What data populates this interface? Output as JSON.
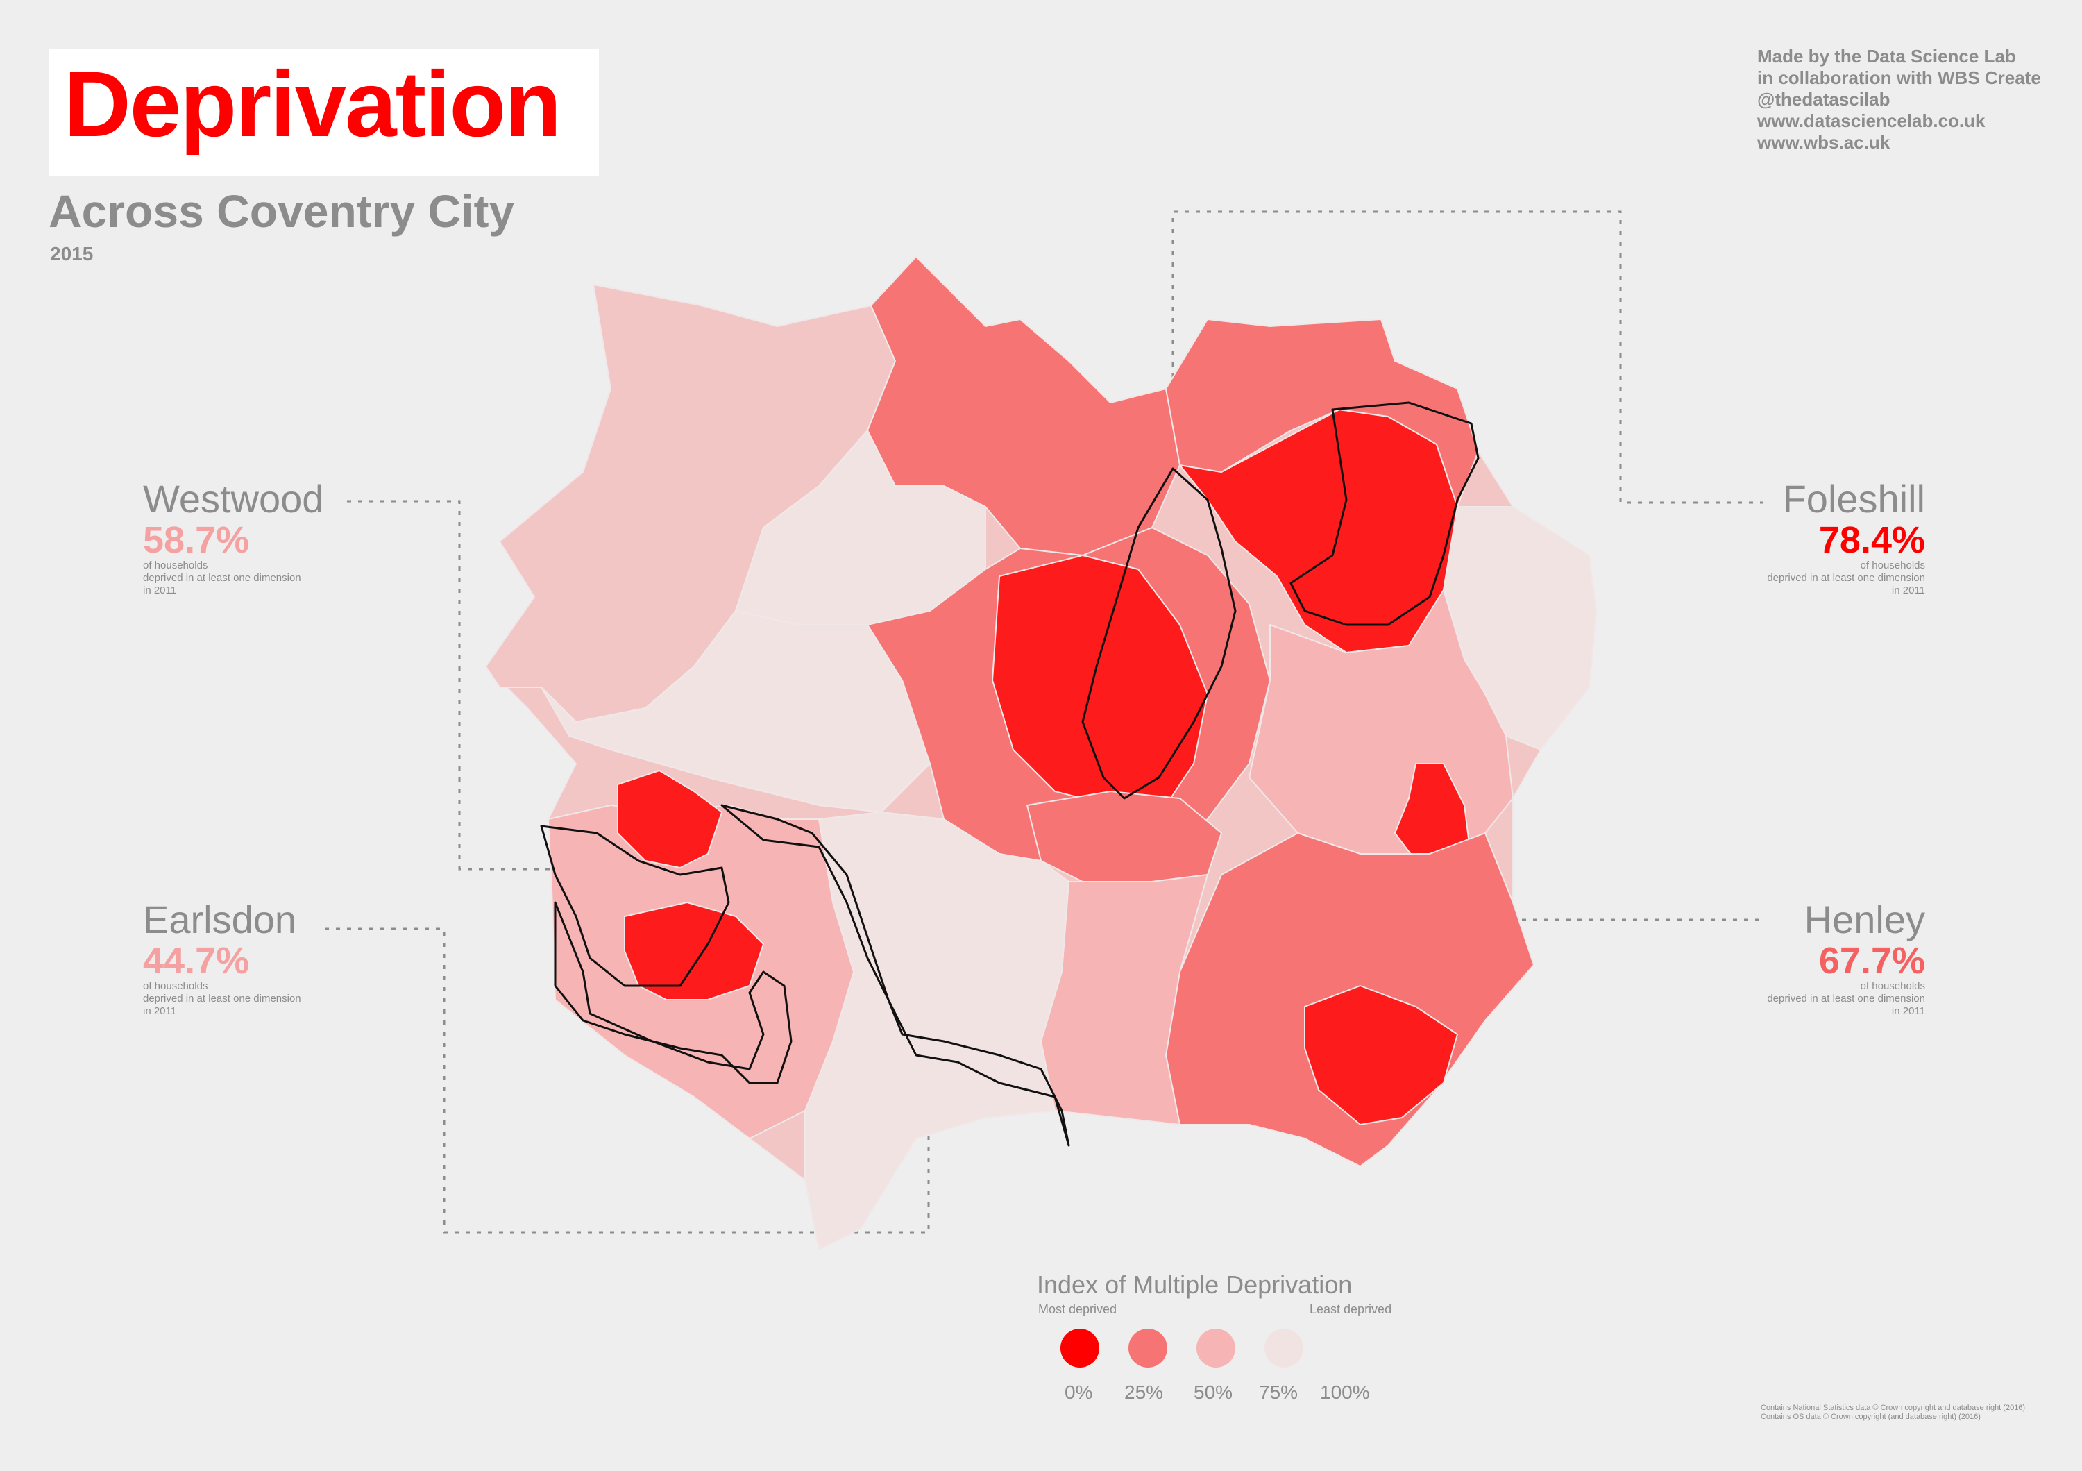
{
  "title": "Deprivation",
  "subtitle": "Across Coventry City",
  "year": "2015",
  "credits": [
    "Made by the Data Science Lab",
    "in collaboration with WBS Create",
    "@thedatascilab",
    "www.datasciencelab.co.uk",
    "www.wbs.ac.uk"
  ],
  "callouts": {
    "westwood": {
      "name": "Westwood",
      "percent": "58.7%",
      "note": [
        "of households",
        "deprived in at least one dimension",
        "in 2011"
      ],
      "color": "#f6a1a1"
    },
    "earlsdon": {
      "name": "Earlsdon",
      "percent": "44.7%",
      "note": [
        "of households",
        "deprived in at least one dimension",
        "in 2011"
      ],
      "color": "#f6a1a1"
    },
    "foleshill": {
      "name": "Foleshill",
      "percent": "78.4%",
      "note": [
        "of households",
        "deprived in at least one dimension",
        "in 2011"
      ],
      "color": "#fe0000"
    },
    "henley": {
      "name": "Henley",
      "percent": "67.7%",
      "note": [
        "of households",
        "deprived in at least one dimension",
        "in 2011"
      ],
      "color": "#f56060"
    }
  },
  "legend": {
    "title": "Index of Multiple Deprivation",
    "most_label": "Most deprived",
    "least_label": "Least deprived",
    "colors": [
      "#fe0000",
      "#f77474",
      "#f6b4b4",
      "#f2e3e3"
    ],
    "ticks": [
      "0%",
      "25%",
      "50%",
      "75%",
      "100%"
    ]
  },
  "footer": [
    "Contains National Statistics data © Crown copyright and database right (2016)",
    "Contains OS data © Crown copyright (and database right) (2016)"
  ],
  "map_colors": {
    "most": "#fe1b1b",
    "high": "#f77474",
    "mid": "#f6b4b4",
    "low": "#f3c6c6",
    "least": "#f2e3e3",
    "outline": "#111111"
  }
}
